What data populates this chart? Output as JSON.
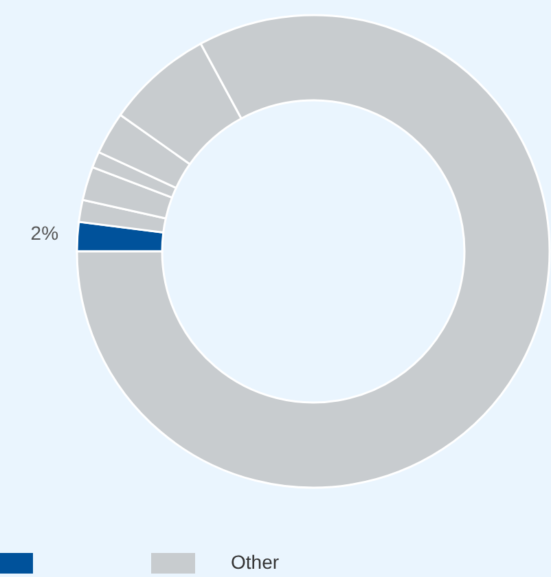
{
  "chart_data": {
    "type": "donut",
    "categories": [
      null,
      "Other",
      null,
      null,
      null,
      null,
      null
    ],
    "values": [
      2,
      1.5,
      2.3,
      1.1,
      2.9,
      7.3,
      82.9
    ],
    "colors": [
      "#00529b",
      "#c8cccf",
      "#c8cccf",
      "#c8cccf",
      "#c8cccf",
      "#c8cccf",
      "#c8cccf"
    ],
    "value_labels": [
      "2%",
      null,
      null,
      null,
      null,
      null,
      null
    ],
    "legend": "bottom left"
  }
}
